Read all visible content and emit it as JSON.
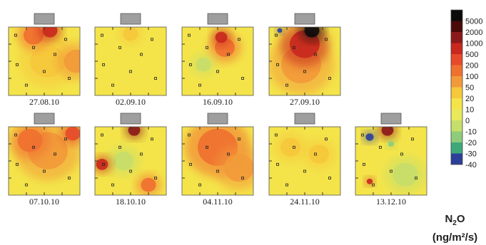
{
  "chart_data": {
    "type": "heatmap",
    "panels": [
      {
        "date": "27.08.10",
        "hotspots": [
          {
            "x": 0.58,
            "y": 0.05,
            "v": 500,
            "r": 0.15
          },
          {
            "x": 0.35,
            "y": 0.12,
            "v": 100,
            "r": 0.2
          },
          {
            "x": 0.95,
            "y": 0.5,
            "v": 80,
            "r": 0.25
          },
          {
            "x": 0.55,
            "y": 0.5,
            "v": 30,
            "r": 0.35
          }
        ]
      },
      {
        "date": "02.09.10",
        "hotspots": [
          {
            "x": 0.5,
            "y": 0.1,
            "v": 40,
            "r": 0.15
          }
        ]
      },
      {
        "date": "16.09.10",
        "hotspots": [
          {
            "x": 0.55,
            "y": 0.15,
            "v": 500,
            "r": 0.12
          },
          {
            "x": 0.6,
            "y": 0.3,
            "v": 150,
            "r": 0.2
          },
          {
            "x": 0.3,
            "y": 0.55,
            "v": -8,
            "r": 0.15
          }
        ]
      },
      {
        "date": "27.09.10",
        "hotspots": [
          {
            "x": 0.6,
            "y": 0.05,
            "v": 5000,
            "r": 0.15
          },
          {
            "x": 0.5,
            "y": 0.25,
            "v": 500,
            "r": 0.3
          },
          {
            "x": 0.45,
            "y": 0.55,
            "v": 60,
            "r": 0.4
          },
          {
            "x": 0.15,
            "y": 0.05,
            "v": -40,
            "r": 0.05
          }
        ]
      },
      {
        "date": "07.10.10",
        "hotspots": [
          {
            "x": 0.3,
            "y": 0.2,
            "v": 150,
            "r": 0.25
          },
          {
            "x": 0.9,
            "y": 0.1,
            "v": 200,
            "r": 0.15
          },
          {
            "x": 0.55,
            "y": 0.35,
            "v": 50,
            "r": 0.4
          }
        ]
      },
      {
        "date": "18.10.10",
        "hotspots": [
          {
            "x": 0.55,
            "y": 0.05,
            "v": 1000,
            "r": 0.12
          },
          {
            "x": 0.1,
            "y": 0.55,
            "v": 500,
            "r": 0.12
          },
          {
            "x": 0.75,
            "y": 0.85,
            "v": 100,
            "r": 0.15
          },
          {
            "x": 0.4,
            "y": 0.5,
            "v": -5,
            "r": 0.2
          }
        ]
      },
      {
        "date": "04.11.10",
        "hotspots": [
          {
            "x": 0.5,
            "y": 0.3,
            "v": 100,
            "r": 0.4
          },
          {
            "x": 0.8,
            "y": 0.6,
            "v": 60,
            "r": 0.3
          }
        ]
      },
      {
        "date": "24.11.10",
        "hotspots": [
          {
            "x": 0.3,
            "y": 0.3,
            "v": 40,
            "r": 0.2
          },
          {
            "x": 0.7,
            "y": 0.4,
            "v": 20,
            "r": 0.2
          }
        ]
      },
      {
        "date": "13.12.10",
        "hotspots": [
          {
            "x": 0.45,
            "y": 0.05,
            "v": 1000,
            "r": 0.12
          },
          {
            "x": 0.2,
            "y": 0.15,
            "v": -40,
            "r": 0.08
          },
          {
            "x": 0.5,
            "y": 0.25,
            "v": -20,
            "r": 0.06
          },
          {
            "x": 0.2,
            "y": 0.8,
            "v": 500,
            "r": 0.06
          },
          {
            "x": 0.7,
            "y": 0.7,
            "v": -5,
            "r": 0.25
          }
        ]
      }
    ],
    "colorbar": {
      "levels": [
        "5000",
        "2000",
        "1000",
        "500",
        "200",
        "100",
        "50",
        "20",
        "10",
        "0",
        "-10",
        "-20",
        "-30",
        "-40"
      ],
      "colors": [
        "#0b0b0b",
        "#4a0a0a",
        "#8b1a1a",
        "#c8281e",
        "#e64a2a",
        "#f07030",
        "#f29a3a",
        "#f6c83c",
        "#f4e44a",
        "#e8ea5c",
        "#c6de6a",
        "#8ecc7a",
        "#3fa87a",
        "#2c3f9a"
      ]
    },
    "unit": {
      "quantity": "N",
      "subscript": "2",
      "species": "O",
      "units": "(ng/m²/s)"
    }
  }
}
